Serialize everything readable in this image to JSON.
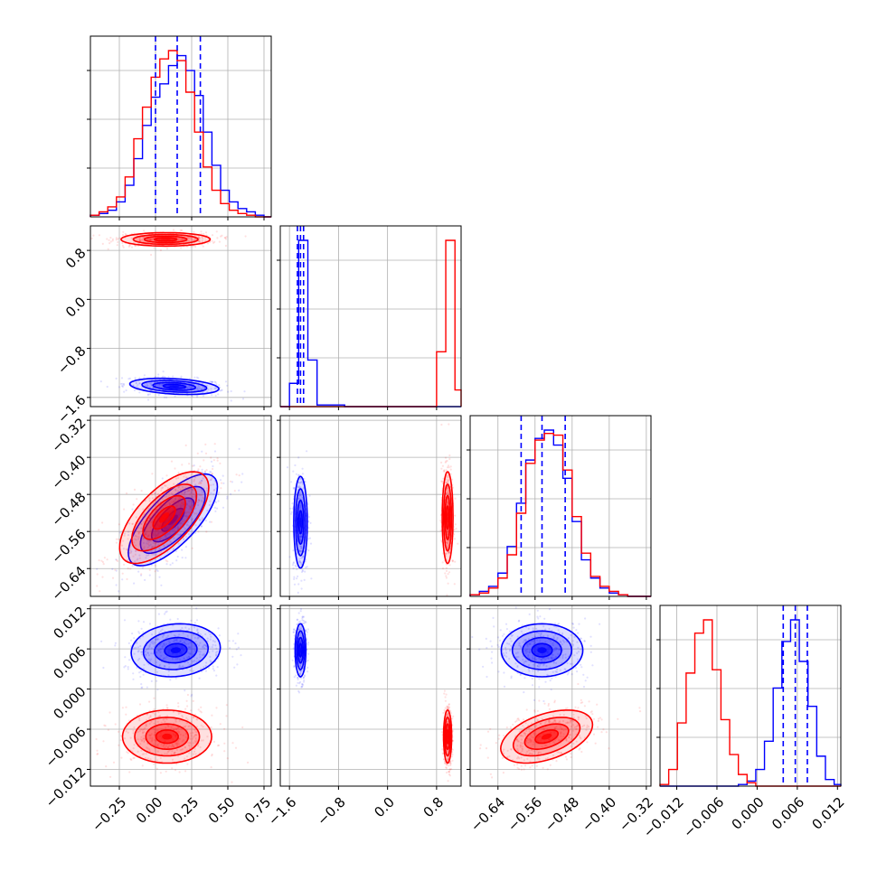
{
  "chart_data": {
    "type": "corner",
    "description_free": true,
    "series": [
      {
        "key": "blue",
        "color": "#0000ff"
      },
      {
        "key": "red",
        "color": "#ff0000"
      }
    ],
    "parameters": [
      {
        "ticks": [
          "−0.25",
          "0.00",
          "0.25",
          "0.50",
          "0.75"
        ],
        "tick_values": [
          -0.25,
          0.0,
          0.25,
          0.5,
          0.75
        ],
        "range": [
          -0.45,
          0.8
        ],
        "quantiles_blue": [
          0.0,
          0.15,
          0.31
        ],
        "hist_edges": [
          -0.45,
          -0.39,
          -0.33,
          -0.27,
          -0.21,
          -0.15,
          -0.09,
          -0.03,
          0.03,
          0.09,
          0.15,
          0.21,
          0.27,
          0.33,
          0.39,
          0.45,
          0.51,
          0.57,
          0.63,
          0.69,
          0.75,
          0.8
        ],
        "hist_blue": [
          1,
          2,
          4,
          9,
          19,
          35,
          55,
          72,
          80,
          91,
          97,
          88,
          73,
          51,
          31,
          16,
          9,
          5,
          3,
          1,
          0
        ],
        "hist_red": [
          1,
          3,
          6,
          12,
          24,
          47,
          66,
          84,
          95,
          100,
          94,
          75,
          51,
          30,
          16,
          8,
          4,
          2,
          1,
          0,
          0
        ],
        "blue_center": 0.15,
        "red_center": 0.07
      },
      {
        "ticks": [
          "−1.6",
          "−0.8",
          "0.0",
          "0.8"
        ],
        "tick_values": [
          -1.6,
          -0.8,
          0.0,
          0.8
        ],
        "range": [
          -1.75,
          1.2
        ],
        "quantiles_blue": [
          -1.47,
          -1.42,
          -1.37
        ],
        "hist_edges": [
          -1.75,
          -1.6,
          -1.45,
          -1.3,
          -1.15,
          -1.0,
          -0.85,
          -0.7,
          -0.55,
          -0.4,
          -0.25,
          -0.1,
          0.05,
          0.2,
          0.35,
          0.5,
          0.65,
          0.8,
          0.95,
          1.1,
          1.2
        ],
        "hist_blue": [
          0,
          14,
          100,
          28,
          1,
          1,
          1,
          0,
          0,
          0,
          0,
          0,
          0,
          0,
          0,
          0,
          0,
          0,
          0,
          0
        ],
        "hist_red": [
          0,
          0,
          0,
          0,
          0,
          0,
          0,
          0,
          0,
          0,
          0,
          0,
          0,
          0,
          0,
          0,
          0,
          33,
          100,
          10
        ],
        "blue_center": -1.42,
        "red_center": 0.98
      },
      {
        "ticks": [
          "−0.64",
          "−0.56",
          "−0.48",
          "−0.40",
          "−0.32"
        ],
        "tick_values": [
          -0.64,
          -0.56,
          -0.48,
          -0.4,
          -0.32
        ],
        "range": [
          -0.7,
          -0.31
        ],
        "quantiles_blue": [
          -0.59,
          -0.545,
          -0.495
        ],
        "hist_edges": [
          -0.7,
          -0.68,
          -0.66,
          -0.64,
          -0.62,
          -0.6,
          -0.58,
          -0.56,
          -0.54,
          -0.52,
          -0.5,
          -0.48,
          -0.46,
          -0.44,
          -0.42,
          -0.4,
          -0.38,
          -0.36,
          -0.34,
          -0.32,
          -0.31
        ],
        "hist_blue": [
          1,
          3,
          6,
          14,
          30,
          56,
          82,
          95,
          100,
          91,
          71,
          45,
          22,
          11,
          5,
          2,
          1,
          0,
          0,
          0
        ],
        "hist_red": [
          1,
          2,
          5,
          11,
          25,
          50,
          80,
          94,
          98,
          97,
          76,
          48,
          26,
          12,
          6,
          3,
          1,
          0,
          0,
          0
        ],
        "blue_center": -0.545,
        "red_center": -0.54
      },
      {
        "ticks": [
          "−0.012",
          "−0.006",
          "0.000",
          "0.006",
          "0.012"
        ],
        "tick_values": [
          -0.012,
          -0.006,
          0.0,
          0.006,
          0.012
        ],
        "range": [
          -0.0145,
          0.0125
        ],
        "quantiles_blue": [
          0.0039,
          0.0057,
          0.0075
        ],
        "hist_edges": [
          -0.0145,
          -0.0132,
          -0.0119,
          -0.0106,
          -0.0093,
          -0.008,
          -0.0067,
          -0.0054,
          -0.0041,
          -0.0028,
          -0.0015,
          -0.0002,
          0.0011,
          0.0024,
          0.0037,
          0.005,
          0.0063,
          0.0076,
          0.0089,
          0.0102,
          0.0115,
          0.0125
        ],
        "hist_blue": [
          0,
          0,
          0,
          0,
          0,
          0,
          0,
          0,
          0,
          1,
          3,
          10,
          27,
          59,
          87,
          100,
          75,
          48,
          18,
          4,
          1
        ],
        "hist_red": [
          1,
          10,
          38,
          68,
          92,
          100,
          70,
          40,
          19,
          7,
          2,
          0,
          0,
          0,
          0,
          0,
          0,
          0,
          0,
          0,
          0
        ],
        "blue_center": 0.0058,
        "red_center": -0.0071
      }
    ],
    "pairs": [
      {
        "row": 1,
        "col": 0,
        "blue": {
          "cx": 0.13,
          "cy": -1.42,
          "sx": 0.14,
          "sy": 0.06,
          "rho": -0.3
        },
        "red": {
          "cx": 0.07,
          "cy": 0.98,
          "sx": 0.14,
          "sy": 0.05,
          "rho": 0.0
        }
      },
      {
        "row": 2,
        "col": 0,
        "blue": {
          "cx": 0.12,
          "cy": -0.535,
          "sx": 0.14,
          "sy": 0.045,
          "rho": 0.72
        },
        "red": {
          "cx": 0.06,
          "cy": -0.53,
          "sx": 0.14,
          "sy": 0.045,
          "rho": 0.65
        }
      },
      {
        "row": 2,
        "col": 1,
        "blue": {
          "cx": -1.42,
          "cy": -0.54,
          "sx": 0.05,
          "sy": 0.045,
          "rho": 0.0
        },
        "red": {
          "cx": 0.98,
          "cy": -0.53,
          "sx": 0.04,
          "sy": 0.045,
          "rho": 0.0
        }
      },
      {
        "row": 3,
        "col": 0,
        "blue": {
          "cx": 0.14,
          "cy": 0.0058,
          "sx": 0.14,
          "sy": 0.0018,
          "rho": 0.1
        },
        "red": {
          "cx": 0.08,
          "cy": -0.0071,
          "sx": 0.14,
          "sy": 0.0018,
          "rho": 0.0
        }
      },
      {
        "row": 3,
        "col": 1,
        "blue": {
          "cx": -1.42,
          "cy": 0.0058,
          "sx": 0.04,
          "sy": 0.0018,
          "rho": 0.0
        },
        "red": {
          "cx": 0.98,
          "cy": -0.0071,
          "sx": 0.03,
          "sy": 0.0018,
          "rho": 0.0
        }
      },
      {
        "row": 3,
        "col": 2,
        "blue": {
          "cx": -0.545,
          "cy": 0.0058,
          "sx": 0.04,
          "sy": 0.0018,
          "rho": 0.0
        },
        "red": {
          "cx": -0.535,
          "cy": -0.0071,
          "sx": 0.045,
          "sy": 0.0018,
          "rho": 0.45
        }
      }
    ],
    "grid": true,
    "legend": "none",
    "title": "",
    "xlabel": "",
    "ylabel": ""
  }
}
